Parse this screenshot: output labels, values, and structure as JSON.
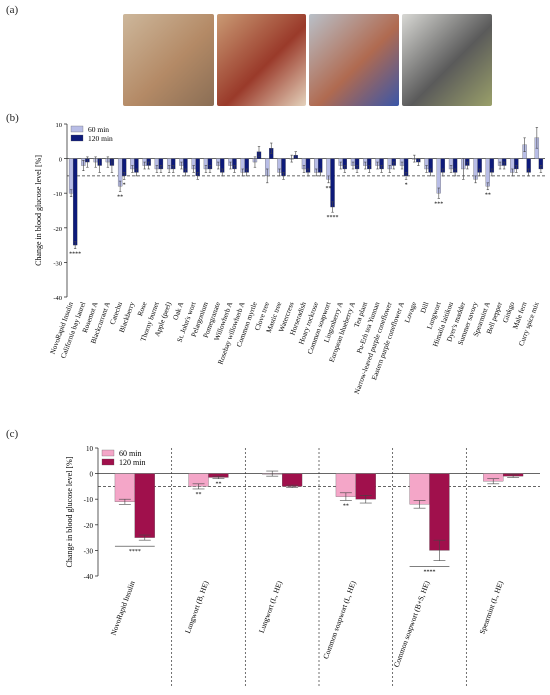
{
  "panels": {
    "a": "(a)",
    "b": "(b)",
    "c": "(c)"
  },
  "photos": [
    {
      "name": "egg-injection-photo",
      "colors": [
        "#cdb79b",
        "#b48a66",
        "#8a6e55"
      ]
    },
    {
      "name": "opened-egg-photo",
      "colors": [
        "#c99a74",
        "#9a3a2a",
        "#e4d2bc"
      ]
    },
    {
      "name": "strip-sampling-photo",
      "colors": [
        "#b9c0c8",
        "#b06a50",
        "#3a56a8"
      ]
    },
    {
      "name": "glucometer-photo",
      "colors": [
        "#d8d8d4",
        "#5a5a5a",
        "#9aa06a"
      ]
    }
  ],
  "chart_data": [
    {
      "type": "bar",
      "ylabel": "Change in blood glucose level [%]",
      "ylim": [
        -40,
        10
      ],
      "yticks": [
        10,
        0,
        -10,
        -20,
        -30,
        -40
      ],
      "reference_line": -5,
      "series": [
        {
          "name": "60 min",
          "color": "#b8bde6"
        },
        {
          "name": "120 min",
          "color": "#0d1a7a"
        }
      ],
      "categories": [
        "NovoRapid Insulin",
        "California bay laurel",
        "Rosemot A",
        "Blackcurrant A",
        "Catechu",
        "Blackberry",
        "Rose",
        "Thorny burnet",
        "Apple (peel)",
        "Oak A",
        "St. John's wort",
        "Pelargonium",
        "Pomegranate",
        "Willowherb A",
        "Rosebay willowherb A",
        "Common myrtle",
        "Clove tree",
        "Mastic tree",
        "Watercress",
        "Horseradish",
        "Hoary rockrose",
        "Common soapwort",
        "Lingonberry A",
        "European blueberry A",
        "Tea plant",
        "Pu-Erh tea Yunnan",
        "Narrow-leaved purple coneflower",
        "Eastern purple coneflower A",
        "Lovage",
        "Dill",
        "Lungwort",
        "Himalia laitikou",
        "Dyer's madder",
        "Summer savory",
        "Spearmint A",
        "Bell pepper",
        "Ginkgo",
        "Male fern",
        "Curry spice mix"
      ],
      "values_60": [
        -10,
        -2,
        -1,
        -1,
        -8,
        -3,
        -2,
        -3,
        -3,
        -2,
        -3,
        -3,
        -2,
        -2,
        -4,
        -1,
        -5,
        -4,
        0,
        -3,
        -4,
        -6,
        -2,
        -2,
        -2,
        -2,
        -3,
        -2,
        0,
        -3,
        -10,
        -3,
        -3,
        -6,
        -8,
        -2,
        -4,
        4,
        6
      ],
      "values_60_err": [
        1,
        1.5,
        1.5,
        1.5,
        1.5,
        1,
        1,
        1,
        1,
        1,
        1,
        1,
        1,
        1,
        1,
        1.5,
        2,
        1,
        1,
        1,
        1,
        1,
        1,
        1,
        1,
        1,
        1,
        1,
        1,
        1,
        1.5,
        1,
        3,
        1,
        1,
        1,
        1,
        2,
        3
      ],
      "values_120": [
        -25,
        -1,
        -2,
        -2,
        -5,
        -4,
        -2,
        -3,
        -3,
        -4,
        -5,
        -3,
        -4,
        -3,
        -4,
        2,
        3,
        -5,
        1,
        -4,
        -4,
        -14,
        -3,
        -3,
        -3,
        -3,
        -2,
        -5,
        -1,
        -4,
        -4,
        -4,
        -2,
        -4,
        -4,
        -2,
        -3,
        -4,
        -3
      ],
      "values_120_err": [
        1,
        1.5,
        2,
        2,
        1,
        1,
        1,
        1,
        1,
        1,
        1,
        1,
        1,
        1,
        1,
        1.5,
        1.5,
        1,
        1,
        1,
        1,
        1.5,
        1,
        1,
        1,
        1,
        1,
        1,
        1,
        1,
        1,
        1,
        1,
        1,
        1,
        1,
        1,
        1,
        1
      ],
      "significance": [
        {
          "index": 0,
          "series": 1,
          "label": "****"
        },
        {
          "index": 4,
          "series": 0,
          "label": "**"
        },
        {
          "index": 4,
          "series": 1,
          "label": "*"
        },
        {
          "index": 21,
          "series": 1,
          "label": "****"
        },
        {
          "index": 21,
          "series": 0,
          "label": "**"
        },
        {
          "index": 27,
          "series": 1,
          "label": "*"
        },
        {
          "index": 30,
          "series": 0,
          "label": "***"
        },
        {
          "index": 34,
          "series": 0,
          "label": "**"
        }
      ]
    },
    {
      "type": "bar",
      "ylabel": "Change in blood glucose level [%]",
      "ylim": [
        -40,
        10
      ],
      "yticks": [
        10,
        0,
        -10,
        -20,
        -30,
        -40
      ],
      "reference_line": -5,
      "series": [
        {
          "name": "60 min",
          "color": "#f4a6c8"
        },
        {
          "name": "120 min",
          "color": "#a0104c"
        }
      ],
      "categories": [
        "NovoRapid Insulin",
        "Lungwort (B, HE)",
        "Lungwort (L, HE)",
        "Common soapwort (L, HE)",
        "Common soapwort (B+S, HE)",
        "Spearmint (L, HE)"
      ],
      "values_60": [
        -11,
        -5,
        0,
        -9,
        -12,
        -3
      ],
      "values_60_err": [
        1,
        1,
        1,
        1.5,
        1.5,
        1
      ],
      "values_120": [
        -25,
        -1.5,
        -5,
        -10,
        -30,
        -1
      ],
      "values_120_err": [
        1,
        0.5,
        0.5,
        1.5,
        4,
        0.5
      ],
      "significance": [
        {
          "index": 0,
          "series": -1,
          "label": "****"
        },
        {
          "index": 1,
          "series": 0,
          "label": "**"
        },
        {
          "index": 1,
          "series": 1,
          "label": "**"
        },
        {
          "index": 3,
          "series": 0,
          "label": "**"
        },
        {
          "index": 4,
          "series": -1,
          "label": "****"
        }
      ]
    }
  ]
}
